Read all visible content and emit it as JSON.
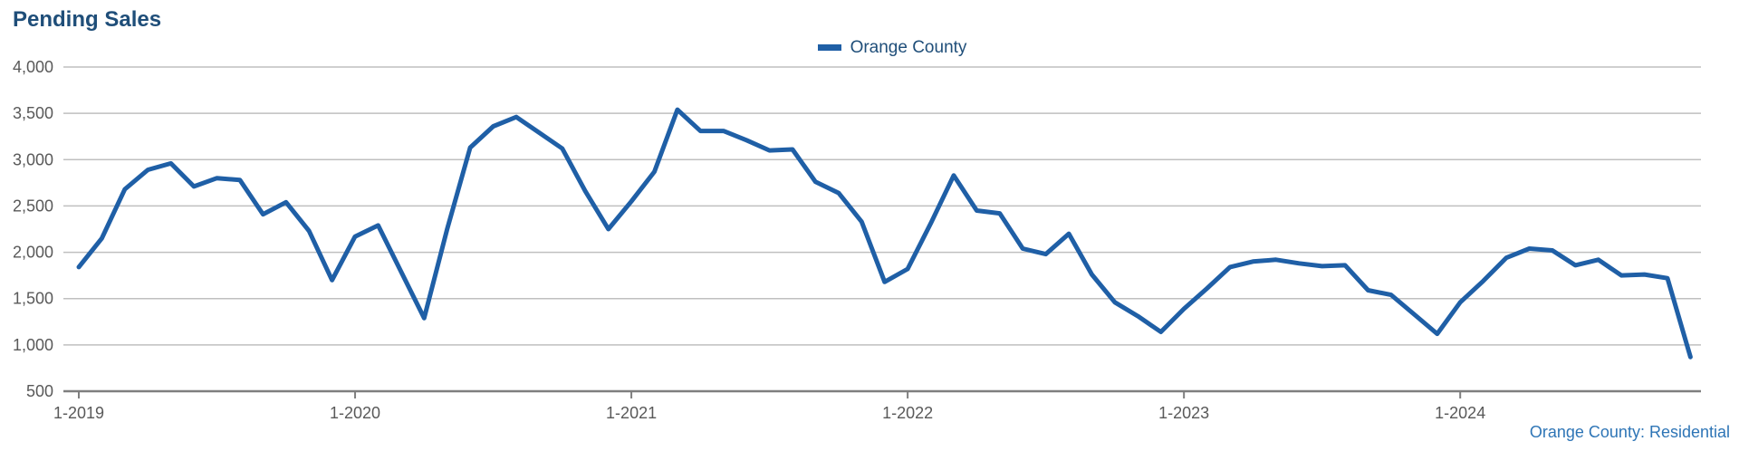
{
  "title": "Pending Sales",
  "footer": "Orange County: Residential",
  "colors": {
    "series": "#1f5fa6",
    "title": "#1f4e79",
    "grid": "#bfbfbf",
    "axis": "#7f7f7f",
    "footer": "#2e75b6"
  },
  "chart_data": {
    "type": "line",
    "title": "Pending Sales",
    "legend_position": "top-center",
    "grid": true,
    "ylim": [
      500,
      4000
    ],
    "yticks": [
      "500",
      "1,000",
      "1,500",
      "2,000",
      "2,500",
      "3,000",
      "3,500",
      "4,000"
    ],
    "ytick_values": [
      500,
      1000,
      1500,
      2000,
      2500,
      3000,
      3500,
      4000
    ],
    "xticks": [
      "1-2019",
      "1-2020",
      "1-2021",
      "1-2022",
      "1-2023",
      "1-2024"
    ],
    "x": [
      "1-2019",
      "2-2019",
      "3-2019",
      "4-2019",
      "5-2019",
      "6-2019",
      "7-2019",
      "8-2019",
      "9-2019",
      "10-2019",
      "11-2019",
      "12-2019",
      "1-2020",
      "2-2020",
      "3-2020",
      "4-2020",
      "5-2020",
      "6-2020",
      "7-2020",
      "8-2020",
      "9-2020",
      "10-2020",
      "11-2020",
      "12-2020",
      "1-2021",
      "2-2021",
      "3-2021",
      "4-2021",
      "5-2021",
      "6-2021",
      "7-2021",
      "8-2021",
      "9-2021",
      "10-2021",
      "11-2021",
      "12-2021",
      "1-2022",
      "2-2022",
      "3-2022",
      "4-2022",
      "5-2022",
      "6-2022",
      "7-2022",
      "8-2022",
      "9-2022",
      "10-2022",
      "11-2022",
      "12-2022",
      "1-2023",
      "2-2023",
      "3-2023",
      "4-2023",
      "5-2023",
      "6-2023",
      "7-2023",
      "8-2023",
      "9-2023",
      "10-2023",
      "11-2023",
      "12-2023",
      "1-2024",
      "2-2024",
      "3-2024",
      "4-2024",
      "5-2024",
      "6-2024",
      "7-2024",
      "8-2024",
      "9-2024",
      "10-2024",
      "11-2024"
    ],
    "series": [
      {
        "name": "Orange County",
        "values": [
          1840,
          2150,
          2680,
          2890,
          2960,
          2710,
          2800,
          2780,
          2410,
          2540,
          2230,
          1700,
          2170,
          2290,
          1790,
          1290,
          2250,
          3130,
          3360,
          3460,
          3290,
          3120,
          2660,
          2250,
          2550,
          2870,
          3540,
          3310,
          3310,
          3210,
          3100,
          3110,
          2760,
          2640,
          2330,
          1680,
          1820,
          2310,
          2830,
          2450,
          2420,
          2040,
          1980,
          2200,
          1760,
          1460,
          1310,
          1140,
          1390,
          1610,
          1840,
          1900,
          1920,
          1880,
          1850,
          1860,
          1590,
          1540,
          1330,
          1120,
          1460,
          1690,
          1940,
          2040,
          2020,
          1860,
          1920,
          1750,
          1760,
          1720,
          870
        ]
      }
    ]
  }
}
